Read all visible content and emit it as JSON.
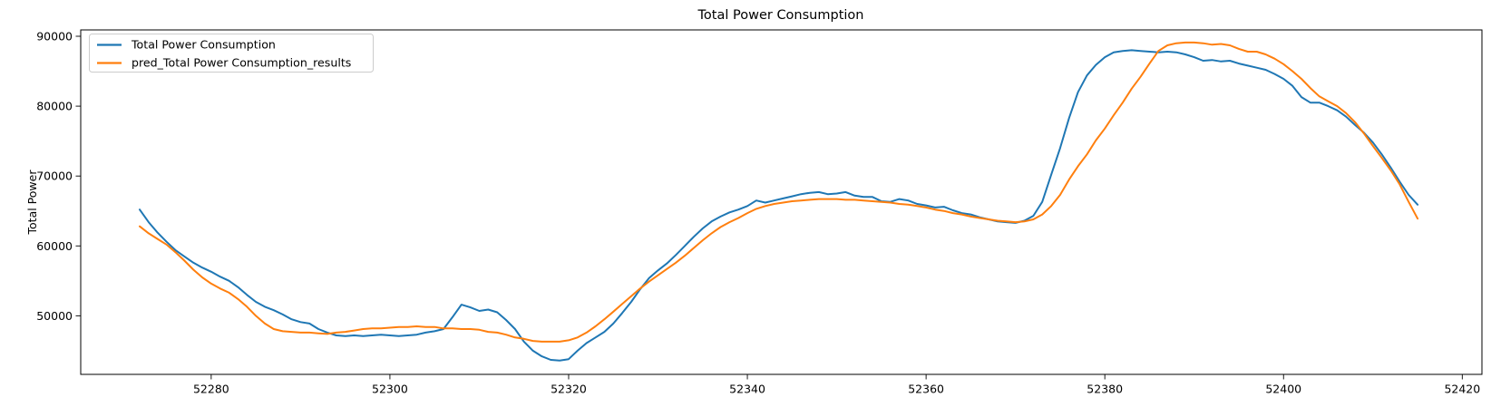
{
  "figure": {
    "title": "Total Power Consumption",
    "background": "#ffffff"
  },
  "legend": {
    "position": "upper left",
    "items": [
      {
        "label": "Total Power Consumption",
        "color": "#1f77b4"
      },
      {
        "label": "pred_Total Power Consumption_results",
        "color": "#ff7f0e"
      }
    ]
  },
  "chart_data": {
    "type": "line",
    "title": "Total Power Consumption",
    "xlabel": "",
    "ylabel": "Total Power",
    "grid": false,
    "legend_position": "upper left",
    "xlim": [
      52265.4,
      52422.2
    ],
    "ylim": [
      41620,
      90908
    ],
    "x_ticks": [
      52280,
      52300,
      52320,
      52340,
      52360,
      52380,
      52400,
      52420
    ],
    "y_ticks": [
      50000,
      60000,
      70000,
      80000,
      90000
    ],
    "x_start": 52272,
    "x_end": 52415,
    "x_step": 1,
    "series": [
      {
        "name": "Total Power Consumption",
        "color": "#1f77b4",
        "values": [
          65200,
          63400,
          61900,
          60600,
          59400,
          58500,
          57600,
          56900,
          56300,
          55600,
          55000,
          54100,
          53000,
          52000,
          51300,
          50800,
          50200,
          49500,
          49100,
          48900,
          48100,
          47600,
          47200,
          47100,
          47200,
          47100,
          47200,
          47300,
          47200,
          47100,
          47200,
          47300,
          47600,
          47800,
          48100,
          49800,
          51600,
          51200,
          50700,
          50900,
          50500,
          49400,
          48100,
          46300,
          45000,
          44200,
          43700,
          43600,
          43800,
          45000,
          46100,
          46900,
          47700,
          48900,
          50400,
          52000,
          53800,
          55400,
          56500,
          57500,
          58700,
          60000,
          61300,
          62500,
          63500,
          64200,
          64800,
          65200,
          65700,
          66500,
          66200,
          66500,
          66800,
          67100,
          67400,
          67600,
          67700,
          67400,
          67500,
          67700,
          67200,
          67000,
          67000,
          66400,
          66300,
          66700,
          66500,
          66000,
          65800,
          65500,
          65600,
          65100,
          64700,
          64500,
          64100,
          63800,
          63500,
          63400,
          63300,
          63600,
          64300,
          66300,
          70200,
          74000,
          78300,
          82000,
          84400,
          85900,
          87000,
          87700,
          87900,
          88000,
          87900,
          87800,
          87700,
          87800,
          87700,
          87400,
          87000,
          86500,
          86600,
          86400,
          86500,
          86100,
          85800,
          85500,
          85200,
          84600,
          83900,
          82900,
          81300,
          80500,
          80500,
          80000,
          79400,
          78500,
          77300,
          76200,
          74800,
          73100,
          71200,
          69200,
          67300,
          65900
        ]
      },
      {
        "name": "pred_Total Power Consumption_results",
        "color": "#ff7f0e",
        "values": [
          62800,
          61800,
          61000,
          60200,
          59100,
          57900,
          56600,
          55500,
          54600,
          53900,
          53300,
          52400,
          51300,
          50000,
          48900,
          48100,
          47800,
          47700,
          47600,
          47600,
          47500,
          47400,
          47600,
          47700,
          47900,
          48100,
          48200,
          48200,
          48300,
          48400,
          48400,
          48500,
          48400,
          48400,
          48200,
          48200,
          48100,
          48100,
          48000,
          47700,
          47600,
          47300,
          46900,
          46700,
          46400,
          46300,
          46300,
          46300,
          46500,
          46900,
          47600,
          48500,
          49500,
          50600,
          51700,
          52800,
          53900,
          54900,
          55800,
          56700,
          57600,
          58600,
          59700,
          60800,
          61800,
          62700,
          63400,
          64000,
          64700,
          65300,
          65700,
          66000,
          66200,
          66400,
          66500,
          66600,
          66700,
          66700,
          66700,
          66600,
          66600,
          66500,
          66400,
          66300,
          66200,
          66000,
          65900,
          65700,
          65500,
          65200,
          65000,
          64700,
          64500,
          64200,
          64000,
          63800,
          63600,
          63500,
          63400,
          63500,
          63800,
          64500,
          65700,
          67300,
          69500,
          71400,
          73100,
          75100,
          76800,
          78700,
          80500,
          82500,
          84200,
          86100,
          87900,
          88700,
          89000,
          89100,
          89100,
          89000,
          88800,
          88900,
          88700,
          88200,
          87800,
          87800,
          87400,
          86800,
          86000,
          85000,
          83900,
          82600,
          81400,
          80700,
          80000,
          79000,
          77700,
          76100,
          74300,
          72600,
          70800,
          68800,
          66300,
          63900
        ]
      }
    ]
  }
}
